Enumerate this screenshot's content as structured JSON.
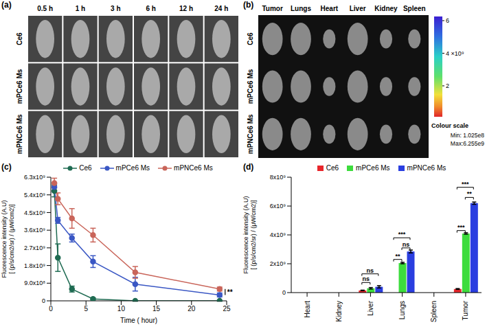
{
  "chart_data": [
    {
      "type": "image_grid",
      "panel_label": "(a)",
      "columns": [
        "0.5 h",
        "1 h",
        "3 h",
        "6 h",
        "12 h",
        "24 h"
      ],
      "rows": [
        "Ce6",
        "mPCe6 Ms",
        "mPNCe6 Ms"
      ]
    },
    {
      "type": "image_grid",
      "panel_label": "(b)",
      "columns": [
        "Tumor",
        "Lungs",
        "Heart",
        "Liver",
        "Kidney",
        "Spleen"
      ],
      "rows": [
        "Ce6",
        "mPCe6 Ms",
        "mPNCe6 Ms"
      ],
      "colorbar": {
        "title": "Colour scale",
        "range": [
          102500000,
          6255000000
        ],
        "ticks": [
          {
            "value": 2000000000,
            "label": "2"
          },
          {
            "value": 4000000000,
            "label": "4 ×10⁹"
          },
          {
            "value": 6000000000,
            "label": "6"
          }
        ],
        "min_label": "Min: 1.025e8",
        "max_label": "Max:6.255e9"
      }
    },
    {
      "type": "line",
      "panel_label": "(c)",
      "x_label": "Time ( hour)",
      "y_label": [
        "Fluorescence intensity (A.U)",
        "[ (p/s/cm2/sr) / (μW/cm2)]"
      ],
      "x": [
        0.5,
        1,
        3,
        6,
        12,
        24
      ],
      "series": [
        {
          "name": "Ce6",
          "color": "#1f6b52",
          "marker": "circle",
          "line_style": "solid",
          "values": [
            5600000000,
            2200000000,
            600000000,
            100000000,
            0,
            0
          ],
          "errors": [
            300000000,
            700000000,
            150000000,
            50000000,
            20000000,
            20000000
          ]
        },
        {
          "name": "mPCe6 Ms",
          "color": "#3a57c4",
          "marker": "circle",
          "line_style": "solid",
          "values": [
            5800000000,
            4100000000,
            3200000000,
            2000000000,
            850000000,
            300000000
          ],
          "errors": [
            200000000,
            150000000,
            200000000,
            300000000,
            350000000,
            100000000
          ]
        },
        {
          "name": "mPNCe6 Ms",
          "color": "#c9655a",
          "marker": "circle",
          "line_style": "solid",
          "values": [
            6000000000,
            5200000000,
            4200000000,
            3350000000,
            1450000000,
            600000000
          ],
          "errors": [
            250000000,
            300000000,
            500000000,
            350000000,
            300000000,
            100000000
          ]
        }
      ],
      "xlim": [
        0,
        25
      ],
      "xticks": [
        0,
        5,
        10,
        15,
        20,
        25
      ],
      "ylim": [
        0,
        6300000000
      ],
      "yticks": [
        0,
        {
          "value": 900000000,
          "label": "9.0x10⁸"
        },
        {
          "value": 1800000000,
          "label": "1.8x10⁹"
        },
        {
          "value": 2700000000,
          "label": "2.7x10⁹"
        },
        {
          "value": 3600000000,
          "label": "3.6x10⁹"
        },
        {
          "value": 4500000000,
          "label": "4.5x10⁹"
        },
        {
          "value": 5400000000,
          "label": "5.4x10⁹"
        },
        {
          "value": 6300000000,
          "label": "6.3x10⁹"
        }
      ],
      "grid": false,
      "legend": "top",
      "annotations": [
        {
          "text": "**",
          "x": 24,
          "between": [
            "mPCe6 Ms",
            "mPNCe6 Ms"
          ]
        }
      ]
    },
    {
      "type": "bar",
      "panel_label": "(d)",
      "y_label": [
        "Fluorescence intensity (A.U)",
        "[ (p/s/cm2/sr) / (μW/cm2)]"
      ],
      "categories": [
        "Heart",
        "Kidney",
        "Liver",
        "Lungs",
        "Spleen",
        "Tumor"
      ],
      "series": [
        {
          "name": "Ce6",
          "color": "#e8262b",
          "values": [
            0,
            0,
            150000000,
            0,
            0,
            250000000
          ],
          "errors": [
            0,
            0,
            20000000,
            0,
            0,
            30000000
          ]
        },
        {
          "name": "mPCe6 Ms",
          "color": "#3ddc3d",
          "values": [
            0,
            0,
            300000000,
            2050000000,
            0,
            4100000000
          ],
          "errors": [
            0,
            0,
            50000000,
            50000000,
            0,
            50000000
          ]
        },
        {
          "name": "mPNCe6 Ms",
          "color": "#2a3ee0",
          "values": [
            0,
            0,
            400000000,
            2850000000,
            0,
            6200000000
          ],
          "errors": [
            0,
            0,
            80000000,
            100000000,
            0,
            80000000
          ]
        }
      ],
      "ylim": [
        0,
        8000000000
      ],
      "yticks": [
        0,
        {
          "value": 2000000000,
          "label": "2x10⁹"
        },
        {
          "value": 4000000000,
          "label": "4x10⁹"
        },
        {
          "value": 6000000000,
          "label": "6x10⁹"
        },
        {
          "value": 8000000000,
          "label": "8x10⁹"
        }
      ],
      "grid": false,
      "legend": "top",
      "annotations": [
        {
          "text": "ns",
          "category": "Liver",
          "between": [
            "Ce6",
            "mPCe6 Ms"
          ],
          "y": 700000000
        },
        {
          "text": "ns",
          "category": "Liver",
          "between": [
            "Ce6",
            "mPNCe6 Ms"
          ],
          "y": 1300000000
        },
        {
          "text": "**",
          "category": "Lungs",
          "between": [
            "Ce6",
            "mPCe6 Ms"
          ],
          "y": 2300000000
        },
        {
          "text": "ns",
          "category": "Lungs",
          "between": [
            "mPCe6 Ms",
            "mPNCe6 Ms"
          ],
          "y": 3100000000
        },
        {
          "text": "***",
          "category": "Lungs",
          "between": [
            "Ce6",
            "mPNCe6 Ms"
          ],
          "y": 3800000000
        },
        {
          "text": "***",
          "category": "Tumor",
          "between": [
            "Ce6",
            "mPCe6 Ms"
          ],
          "y": 4300000000
        },
        {
          "text": "**",
          "category": "Tumor",
          "between": [
            "mPCe6 Ms",
            "mPNCe6 Ms"
          ],
          "y": 6600000000
        },
        {
          "text": "***",
          "category": "Tumor",
          "between": [
            "Ce6",
            "mPNCe6 Ms"
          ],
          "y": 7300000000
        }
      ]
    }
  ]
}
